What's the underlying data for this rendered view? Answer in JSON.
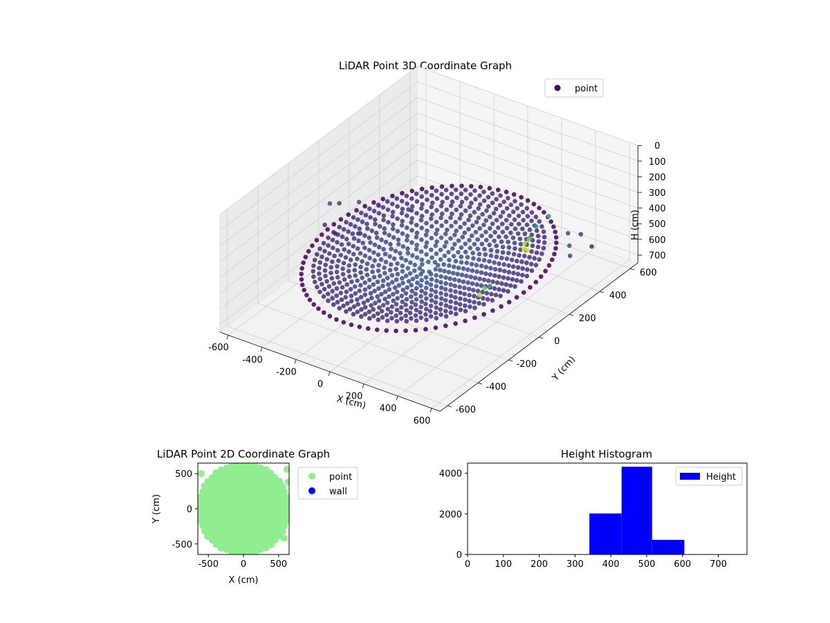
{
  "chart_data": [
    {
      "type": "scatter",
      "projection": "3d",
      "title": "LiDAR Point 3D Coordinate Graph",
      "xlabel": "X (cm)",
      "ylabel": "Y (cm)",
      "zlabel": "H (cm)",
      "xlim": [
        -650,
        650
      ],
      "ylim": [
        -650,
        650
      ],
      "zlim": [
        750,
        0
      ],
      "z_inverted": true,
      "colormap": "viridis",
      "x_ticks": [
        "-600",
        "-400",
        "-200",
        "0",
        "200",
        "400",
        "600"
      ],
      "y_ticks": [
        "-600",
        "-400",
        "-200",
        "0",
        "200",
        "400",
        "600"
      ],
      "z_ticks": [
        "0",
        "100",
        "200",
        "300",
        "400",
        "500",
        "600",
        "700"
      ],
      "legend": {
        "entries": [
          "point"
        ],
        "placement": "top-right",
        "marker_color": "#440154"
      },
      "grid": true,
      "series": [
        {
          "name": "point",
          "description_points": {
            "outer_ring": {
              "radius": 560,
              "height": 500,
              "count": 80
            },
            "inner_disk": {
              "max_radius": 520,
              "rim_height": 480,
              "center_height": 560
            },
            "scattered": [
              {
                "x": -620,
                "y": 40,
                "h": 420
              },
              {
                "x": -600,
                "y": 80,
                "h": 440
              },
              {
                "x": -560,
                "y": -60,
                "h": 460
              },
              {
                "x": -520,
                "y": 120,
                "h": 430
              },
              {
                "x": -480,
                "y": -80,
                "h": 470
              },
              {
                "x": -430,
                "y": 150,
                "h": 440
              },
              {
                "x": -380,
                "y": -40,
                "h": 460
              },
              {
                "x": -300,
                "y": 200,
                "h": 450
              },
              {
                "x": 480,
                "y": 380,
                "h": 430
              },
              {
                "x": 520,
                "y": 420,
                "h": 450
              },
              {
                "x": 560,
                "y": 300,
                "h": 420
              },
              {
                "x": 600,
                "y": 260,
                "h": 440
              },
              {
                "x": 620,
                "y": 380,
                "h": 460
              },
              {
                "x": 460,
                "y": 150,
                "h": 300
              },
              {
                "x": 500,
                "y": 100,
                "h": 260
              },
              {
                "x": 520,
                "y": 50,
                "h": 240
              },
              {
                "x": 560,
                "y": 0,
                "h": 220
              },
              {
                "x": 600,
                "y": -20,
                "h": 200
              },
              {
                "x": 540,
                "y": -200,
                "h": 320
              },
              {
                "x": 580,
                "y": -280,
                "h": 260
              },
              {
                "x": 620,
                "y": -360,
                "h": 230
              },
              {
                "x": 420,
                "y": 320,
                "h": 300
              },
              {
                "x": 400,
                "y": 260,
                "h": 330
              }
            ]
          }
        }
      ]
    },
    {
      "type": "scatter",
      "title": "LiDAR Point 2D Coordinate Graph",
      "xlabel": "X (cm)",
      "ylabel": "Y (cm)",
      "xlim": [
        -650,
        650
      ],
      "ylim": [
        -650,
        650
      ],
      "x_ticks": [
        "-500",
        "0",
        "500"
      ],
      "y_ticks": [
        "-500",
        "0",
        "500"
      ],
      "legend": {
        "placement": "outside-right"
      },
      "series": [
        {
          "name": "point",
          "color": "#90ee90",
          "shape": "filled disk",
          "radius": 640
        },
        {
          "name": "wall",
          "color": "#0000ff",
          "points": []
        }
      ]
    },
    {
      "type": "bar",
      "subtype": "histogram",
      "title": "Height Histogram",
      "xlim": [
        0,
        780
      ],
      "ylim": [
        0,
        4500
      ],
      "x_ticks": [
        "0",
        "100",
        "200",
        "300",
        "400",
        "500",
        "600",
        "700"
      ],
      "y_ticks": [
        "0",
        "2000",
        "4000"
      ],
      "legend": {
        "entries": [
          "Height"
        ],
        "placement": "top-right"
      },
      "series": [
        {
          "name": "Height",
          "color": "#0000ff",
          "bins": [
            {
              "start": 340,
              "end": 430,
              "count": 2020
            },
            {
              "start": 430,
              "end": 515,
              "count": 4320
            },
            {
              "start": 515,
              "end": 605,
              "count": 720
            }
          ]
        }
      ]
    }
  ]
}
